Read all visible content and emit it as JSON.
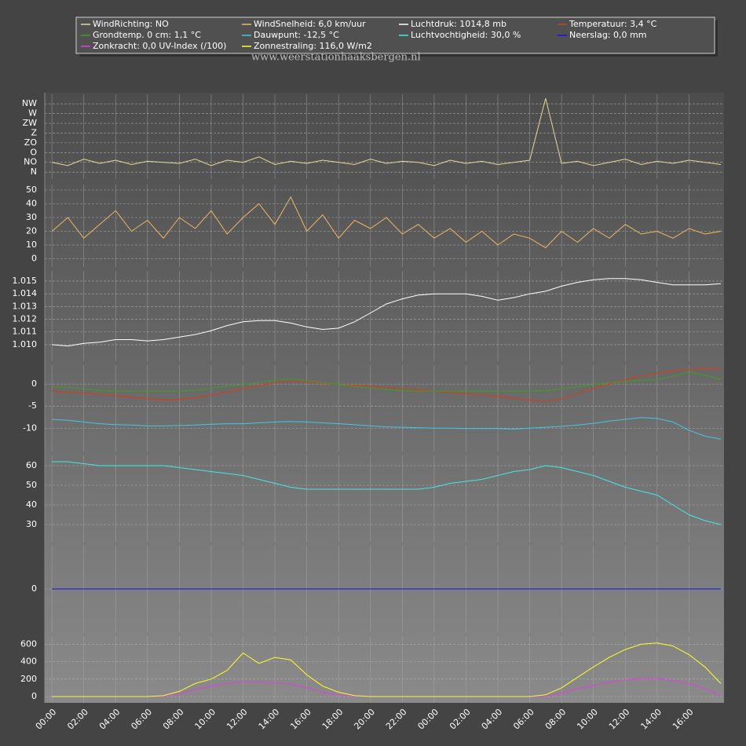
{
  "chart_data": [
    {
      "type": "line",
      "annotation": "www.weerstationhaaksbergen.nl",
      "x": [
        0,
        1,
        2,
        3,
        4,
        5,
        6,
        7,
        8,
        9,
        10,
        11,
        12,
        13,
        14,
        15,
        16,
        17,
        18,
        19,
        20,
        21,
        22,
        23,
        24,
        25,
        26,
        27,
        28,
        29,
        30,
        31,
        32,
        33,
        34,
        35,
        36,
        37,
        38,
        39,
        40,
        41,
        42
      ],
      "xlim": [
        -0.45,
        42.2
      ],
      "xticks": [
        0,
        2,
        4,
        6,
        8,
        10,
        12,
        14,
        16,
        18,
        20,
        22,
        24,
        26,
        28,
        30,
        32,
        34,
        36,
        38,
        40
      ],
      "ylim": [
        -32,
        359
      ],
      "yticks": [
        {
          "value": 315,
          "label": "NW"
        },
        {
          "value": 270,
          "label": "W"
        },
        {
          "value": 225,
          "label": "ZW"
        },
        {
          "value": 180,
          "label": "Z"
        },
        {
          "value": 135,
          "label": "ZO"
        },
        {
          "value": 90,
          "label": "O"
        },
        {
          "value": 45,
          "label": "NO"
        },
        {
          "value": 0,
          "label": "N"
        }
      ],
      "grid": true,
      "series": [
        {
          "name": "WindRichting: NO",
          "color": "#e8d890",
          "values": [
            45,
            30,
            60,
            40,
            55,
            35,
            50,
            45,
            40,
            60,
            30,
            55,
            45,
            70,
            35,
            50,
            40,
            55,
            45,
            35,
            60,
            40,
            50,
            45,
            30,
            55,
            40,
            50,
            35,
            45,
            55,
            340,
            40,
            50,
            30,
            45,
            60,
            35,
            50,
            40,
            55,
            45,
            35
          ]
        }
      ]
    },
    {
      "type": "line",
      "x": [
        0,
        1,
        2,
        3,
        4,
        5,
        6,
        7,
        8,
        9,
        10,
        11,
        12,
        13,
        14,
        15,
        16,
        17,
        18,
        19,
        20,
        21,
        22,
        23,
        24,
        25,
        26,
        27,
        28,
        29,
        30,
        31,
        32,
        33,
        34,
        35,
        36,
        37,
        38,
        39,
        40,
        41,
        42
      ],
      "xlim": [
        -0.45,
        42.2
      ],
      "xticks": [
        0,
        2,
        4,
        6,
        8,
        10,
        12,
        14,
        16,
        18,
        20,
        22,
        24,
        26,
        28,
        30,
        32,
        34,
        36,
        38,
        40
      ],
      "ylim": [
        -6,
        54
      ],
      "yticks": [
        50,
        40,
        30,
        20,
        10,
        0
      ],
      "grid": true,
      "series": [
        {
          "name": "WindSnelheid: 6,0 km/uur",
          "color": "#f0b860",
          "values": [
            20,
            30,
            15,
            25,
            35,
            20,
            28,
            15,
            30,
            22,
            35,
            18,
            30,
            40,
            25,
            45,
            20,
            32,
            15,
            28,
            22,
            30,
            18,
            25,
            15,
            22,
            12,
            20,
            10,
            18,
            15,
            8,
            20,
            12,
            22,
            15,
            25,
            18,
            20,
            15,
            22,
            18,
            20
          ]
        }
      ]
    },
    {
      "type": "line",
      "x": [
        0,
        1,
        2,
        3,
        4,
        5,
        6,
        7,
        8,
        9,
        10,
        11,
        12,
        13,
        14,
        15,
        16,
        17,
        18,
        19,
        20,
        21,
        22,
        23,
        24,
        25,
        26,
        27,
        28,
        29,
        30,
        31,
        32,
        33,
        34,
        35,
        36,
        37,
        38,
        39,
        40,
        41,
        42
      ],
      "xlim": [
        -0.45,
        42.2
      ],
      "xticks": [
        0,
        2,
        4,
        6,
        8,
        10,
        12,
        14,
        16,
        18,
        20,
        22,
        24,
        26,
        28,
        30,
        32,
        34,
        36,
        38,
        40
      ],
      "ylim": [
        1.0087,
        1.0158
      ],
      "yticks": [
        1.015,
        1.014,
        1.013,
        1.012,
        1.011,
        {
          "value": 1.01,
          "label": "1.010"
        }
      ],
      "grid": true,
      "series": [
        {
          "name": "Luchtdruk: 1014,8 mb",
          "color": "#ffffff",
          "values": [
            1.01,
            1.0099,
            1.0101,
            1.0102,
            1.0104,
            1.0104,
            1.0103,
            1.0104,
            1.0106,
            1.0108,
            1.0111,
            1.0115,
            1.0118,
            1.0119,
            1.0119,
            1.0117,
            1.0114,
            1.0112,
            1.0113,
            1.0118,
            1.0125,
            1.0132,
            1.0136,
            1.0139,
            1.014,
            1.014,
            1.014,
            1.0138,
            1.0135,
            1.0137,
            1.014,
            1.0142,
            1.0146,
            1.0149,
            1.0151,
            1.0152,
            1.0152,
            1.0151,
            1.0149,
            1.0147,
            1.0147,
            1.0147,
            1.0148
          ]
        }
      ]
    },
    {
      "type": "line",
      "x": [
        0,
        1,
        2,
        3,
        4,
        5,
        6,
        7,
        8,
        9,
        10,
        11,
        12,
        13,
        14,
        15,
        16,
        17,
        18,
        19,
        20,
        21,
        22,
        23,
        24,
        25,
        26,
        27,
        28,
        29,
        30,
        31,
        32,
        33,
        34,
        35,
        36,
        37,
        38,
        39,
        40,
        41,
        42
      ],
      "xlim": [
        -0.45,
        42.2
      ],
      "xticks": [
        0,
        2,
        4,
        6,
        8,
        10,
        12,
        14,
        16,
        18,
        20,
        22,
        24,
        26,
        28,
        30,
        32,
        34,
        36,
        38,
        40
      ],
      "ylim": [
        -15.3,
        4.3
      ],
      "yticks": [
        0,
        -5,
        -10
      ],
      "grid": true,
      "series": [
        {
          "name": "Temperatuur: 3,4 °C",
          "color": "#e03a10",
          "values": [
            -1.5,
            -1.8,
            -2.0,
            -2.3,
            -2.6,
            -3.0,
            -3.3,
            -3.5,
            -3.4,
            -3.1,
            -2.5,
            -1.8,
            -1.0,
            -0.3,
            0.3,
            0.6,
            0.5,
            0.2,
            -0.1,
            -0.3,
            -0.5,
            -0.7,
            -1.0,
            -1.3,
            -1.6,
            -1.9,
            -2.2,
            -2.5,
            -2.8,
            -3.2,
            -3.6,
            -4.0,
            -3.3,
            -2.2,
            -1.0,
            0.0,
            1.0,
            1.8,
            2.5,
            3.0,
            3.4,
            3.5,
            3.4
          ]
        },
        {
          "name": "Grondtemp. 0 cm: 1,1 °C",
          "color": "#3aa020",
          "values": [
            -0.5,
            -0.8,
            -1.1,
            -1.4,
            -1.6,
            -1.6,
            -1.6,
            -1.6,
            -1.6,
            -1.4,
            -1.0,
            -0.5,
            -0.1,
            0.4,
            0.9,
            1.2,
            0.8,
            0.3,
            -0.1,
            -0.5,
            -0.9,
            -1.2,
            -1.5,
            -1.6,
            -1.6,
            -1.6,
            -1.6,
            -1.6,
            -1.6,
            -1.6,
            -1.6,
            -1.5,
            -1.1,
            -0.6,
            -0.1,
            0.3,
            0.6,
            0.9,
            1.0,
            1.8,
            2.8,
            2.0,
            1.1
          ]
        },
        {
          "name": "Dauwpunt: -12,5 °C",
          "color": "#40c8e8",
          "values": [
            -8.0,
            -8.2,
            -8.6,
            -9.0,
            -9.2,
            -9.3,
            -9.5,
            -9.5,
            -9.4,
            -9.3,
            -9.1,
            -9.0,
            -9.0,
            -8.8,
            -8.6,
            -8.5,
            -8.6,
            -8.8,
            -9.0,
            -9.2,
            -9.5,
            -9.7,
            -9.8,
            -9.9,
            -10.0,
            -10.0,
            -10.1,
            -10.1,
            -10.1,
            -10.2,
            -10.0,
            -9.8,
            -9.6,
            -9.3,
            -8.9,
            -8.4,
            -8.0,
            -7.6,
            -7.8,
            -8.6,
            -10.5,
            -11.8,
            -12.5
          ]
        }
      ]
    },
    {
      "type": "line",
      "x": [
        0,
        1,
        2,
        3,
        4,
        5,
        6,
        7,
        8,
        9,
        10,
        11,
        12,
        13,
        14,
        15,
        16,
        17,
        18,
        19,
        20,
        21,
        22,
        23,
        24,
        25,
        26,
        27,
        28,
        29,
        30,
        31,
        32,
        33,
        34,
        35,
        36,
        37,
        38,
        39,
        40,
        41,
        42
      ],
      "xlim": [
        -0.45,
        42.2
      ],
      "xticks": [
        0,
        2,
        4,
        6,
        8,
        10,
        12,
        14,
        16,
        18,
        20,
        22,
        24,
        26,
        28,
        30,
        32,
        34,
        36,
        38,
        40
      ],
      "ylim": [
        21.2,
        65.2
      ],
      "yticks": [
        60,
        50,
        40,
        30
      ],
      "grid": true,
      "series": [
        {
          "name": "Luchtvochtigheid: 30,0 %",
          "color": "#40e8e8",
          "values": [
            62,
            62,
            61,
            60,
            60,
            60,
            60,
            60,
            59,
            58,
            57,
            56,
            55,
            53,
            51,
            49,
            48,
            48,
            48,
            48,
            48,
            48,
            48,
            48,
            49,
            51,
            52,
            53,
            55,
            57,
            58,
            60,
            59,
            57,
            55,
            52,
            49,
            47,
            45,
            40,
            35,
            32,
            30
          ]
        }
      ]
    },
    {
      "type": "line",
      "x": [
        0,
        1,
        2,
        3,
        4,
        5,
        6,
        7,
        8,
        9,
        10,
        11,
        12,
        13,
        14,
        15,
        16,
        17,
        18,
        19,
        20,
        21,
        22,
        23,
        24,
        25,
        26,
        27,
        28,
        29,
        30,
        31,
        32,
        33,
        34,
        35,
        36,
        37,
        38,
        39,
        40,
        41,
        42
      ],
      "xlim": [
        -0.45,
        42.2
      ],
      "xticks": [
        0,
        2,
        4,
        6,
        8,
        10,
        12,
        14,
        16,
        18,
        20,
        22,
        24,
        26,
        28,
        30,
        32,
        34,
        36,
        38,
        40
      ],
      "ylim": [
        -1,
        1
      ],
      "yticks": [
        0
      ],
      "grid": true,
      "series": [
        {
          "name": "Neerslag: 0,0 mm",
          "color": "#1010ff",
          "values": [
            0,
            0,
            0,
            0,
            0,
            0,
            0,
            0,
            0,
            0,
            0,
            0,
            0,
            0,
            0,
            0,
            0,
            0,
            0,
            0,
            0,
            0,
            0,
            0,
            0,
            0,
            0,
            0,
            0,
            0,
            0,
            0,
            0,
            0,
            0,
            0,
            0,
            0,
            0,
            0,
            0,
            0,
            0
          ]
        }
      ]
    },
    {
      "type": "line",
      "x": [
        0,
        1,
        2,
        3,
        4,
        5,
        6,
        7,
        8,
        9,
        10,
        11,
        12,
        13,
        14,
        15,
        16,
        17,
        18,
        19,
        20,
        21,
        22,
        23,
        24,
        25,
        26,
        27,
        28,
        29,
        30,
        31,
        32,
        33,
        34,
        35,
        36,
        37,
        38,
        39,
        40,
        41,
        42
      ],
      "xlim": [
        -0.45,
        42.2
      ],
      "xticks": [
        {
          "value": 0,
          "label": "00:00"
        },
        {
          "value": 2,
          "label": "02:00"
        },
        {
          "value": 4,
          "label": "04:00"
        },
        {
          "value": 6,
          "label": "06:00"
        },
        {
          "value": 8,
          "label": "08:00"
        },
        {
          "value": 10,
          "label": "10:00"
        },
        {
          "value": 12,
          "label": "12:00"
        },
        {
          "value": 14,
          "label": "14:00"
        },
        {
          "value": 16,
          "label": "16:00"
        },
        {
          "value": 18,
          "label": "18:00"
        },
        {
          "value": 20,
          "label": "20:00"
        },
        {
          "value": 22,
          "label": "22:00"
        },
        {
          "value": 24,
          "label": "00:00"
        },
        {
          "value": 26,
          "label": "02:00"
        },
        {
          "value": 28,
          "label": "04:00"
        },
        {
          "value": 30,
          "label": "06:00"
        },
        {
          "value": 32,
          "label": "08:00"
        },
        {
          "value": 34,
          "label": "10:00"
        },
        {
          "value": 36,
          "label": "12:00"
        },
        {
          "value": 38,
          "label": "14:00"
        },
        {
          "value": 40,
          "label": "16:00"
        }
      ],
      "ylim": [
        -72,
        694
      ],
      "yticks": [
        600,
        400,
        200,
        0
      ],
      "grid": true,
      "series": [
        {
          "name": "Zonkracht: 0,0 UV-Index (/100)",
          "color": "#e040e0",
          "values": [
            0,
            0,
            0,
            0,
            0,
            0,
            0,
            5,
            30,
            80,
            120,
            150,
            170,
            170,
            160,
            140,
            100,
            50,
            20,
            5,
            0,
            0,
            0,
            0,
            0,
            0,
            0,
            0,
            0,
            0,
            0,
            5,
            40,
            90,
            130,
            165,
            190,
            205,
            205,
            185,
            150,
            90,
            10
          ]
        },
        {
          "name": "Zonnestraling: 116,0 W/m2",
          "color": "#ffff20",
          "values": [
            0,
            0,
            0,
            0,
            0,
            0,
            0,
            10,
            60,
            150,
            200,
            300,
            500,
            380,
            450,
            420,
            250,
            120,
            50,
            10,
            0,
            0,
            0,
            0,
            0,
            0,
            0,
            0,
            0,
            0,
            0,
            20,
            100,
            220,
            340,
            450,
            540,
            600,
            615,
            580,
            480,
            340,
            150
          ]
        }
      ]
    }
  ]
}
